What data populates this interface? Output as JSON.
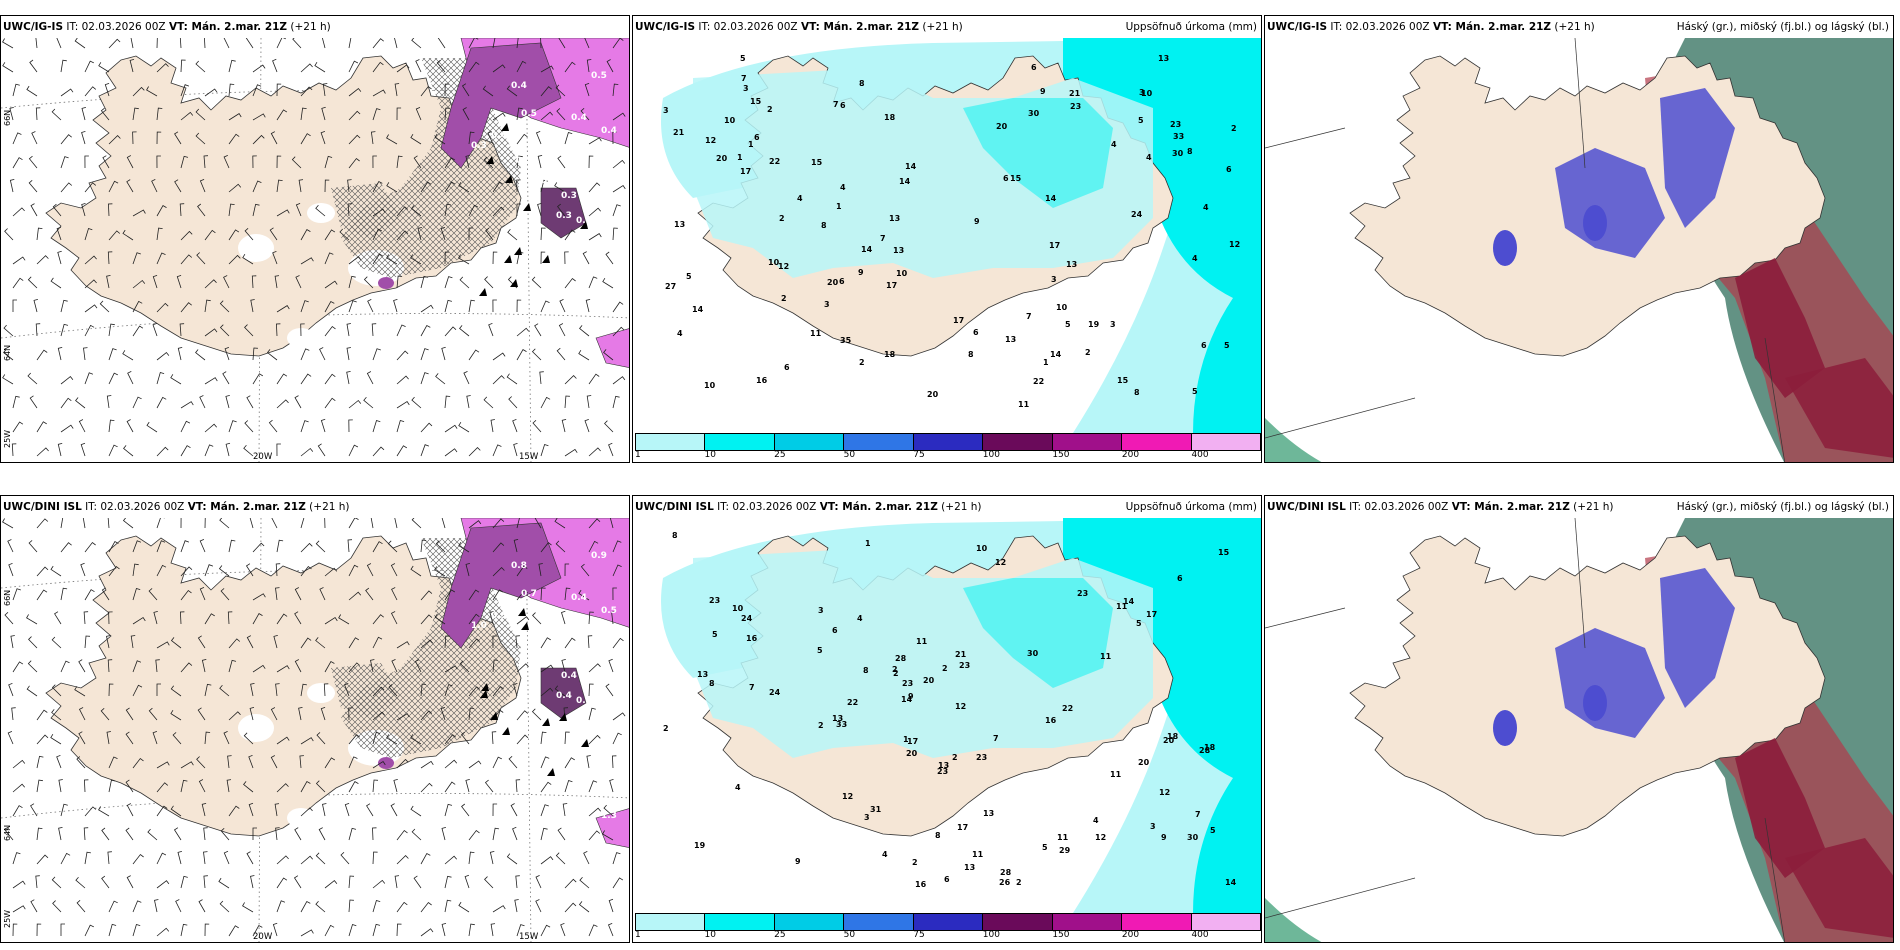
{
  "colors": {
    "land": "#f5e6d6",
    "precip_light": "#b7f6f8",
    "precip_cyan": "#00f2f2",
    "purple_dark": "#6e3b73",
    "purple_mid": "#a14ea9",
    "magenta": "#e57ae6",
    "cloud_blue": "#4d4dd0",
    "cloud_red": "#8c1d3b",
    "cloud_green": "#2f6e5b"
  },
  "panels": [
    {
      "model": "UWC/IG-IS",
      "it": "IT: 02.03.2026 00Z",
      "vt": "VT: Mán. 2.mar. 21Z",
      "lead": "(+21 h)",
      "right_title": "",
      "lat_labels": [
        "66N",
        "64N",
        "25W"
      ],
      "lon_labels": [
        "20W",
        "15W"
      ],
      "white_values": [
        "0.5",
        "0.4",
        "0.4",
        "0.5",
        "0.4",
        "0.3",
        "0.4",
        "0.5",
        "0.4",
        "0.3",
        "0.3",
        "0.3"
      ]
    },
    {
      "model": "UWC/IG-IS",
      "it": "IT: 02.03.2026 00Z",
      "vt": "VT: Mán. 2.mar. 21Z",
      "lead": "(+21 h)",
      "right_title": "Uppsöfnuð úrkoma (mm)",
      "values": [
        "3",
        "5",
        "4",
        "1",
        "1",
        "2",
        "6",
        "3",
        "10",
        "12",
        "13",
        "17",
        "6",
        "2",
        "5",
        "4",
        "7",
        "1",
        "2",
        "3",
        "4",
        "8",
        "7",
        "6",
        "9",
        "13",
        "13",
        "11",
        "17",
        "24",
        "21",
        "17",
        "14",
        "18",
        "19",
        "21",
        "22",
        "23",
        "20",
        "8",
        "13",
        "7",
        "10",
        "14",
        "6",
        "6",
        "14",
        "22",
        "23",
        "20",
        "33",
        "30",
        "10",
        "11",
        "8",
        "5",
        "4",
        "2",
        "3",
        "15",
        "10",
        "10",
        "6",
        "17",
        "9",
        "20",
        "15",
        "15",
        "12",
        "20",
        "16",
        "14",
        "13",
        "13",
        "14",
        "7",
        "4",
        "9",
        "5",
        "8",
        "4",
        "2",
        "3",
        "4",
        "2",
        "1",
        "6",
        "5",
        "12",
        "15",
        "18",
        "14",
        "30",
        "35",
        "27",
        "6",
        "10",
        "3",
        "5",
        "6",
        "8"
      ]
    },
    {
      "model": "UWC/IG-IS",
      "it": "IT: 02.03.2026 00Z",
      "vt": "VT: Mán. 2.mar. 21Z",
      "lead": "(+21 h)",
      "right_title": "Háský (gr.), miðský (fj.bl.) og lágský (bl.)"
    },
    {
      "model": "UWC/DINI ISL",
      "it": "IT: 02.03.2026 00Z",
      "vt": "VT: Mán. 2.mar. 21Z",
      "lead": "(+21 h)",
      "right_title": "",
      "lat_labels": [
        "66N",
        "64N",
        "25W"
      ],
      "lon_labels": [
        "20W",
        "15W"
      ],
      "white_values": [
        "0.7",
        "0.4",
        "0.8",
        "0.9",
        "0.5",
        "1.0",
        "0.5",
        "1.1",
        "0.8",
        "0.4",
        "0.5",
        "0.4",
        "1.3"
      ]
    },
    {
      "model": "UWC/DINI ISL",
      "it": "IT: 02.03.2026 00Z",
      "vt": "VT: Mán. 2.mar. 21Z",
      "lead": "(+21 h)",
      "right_title": "Uppsöfnuð úrkoma (mm)",
      "values": [
        "2",
        "2",
        "4",
        "5",
        "4",
        "1",
        "2",
        "11",
        "10",
        "3",
        "2",
        "6",
        "17",
        "13",
        "9",
        "7",
        "5",
        "9",
        "8",
        "12",
        "16",
        "21",
        "28",
        "19",
        "31",
        "29",
        "23",
        "22",
        "24",
        "23",
        "20",
        "28",
        "30",
        "24",
        "26",
        "23",
        "23",
        "33",
        "28",
        "13",
        "8",
        "17",
        "16",
        "20",
        "14",
        "6",
        "8",
        "5",
        "4",
        "3",
        "2",
        "4",
        "7",
        "5",
        "9",
        "11",
        "15",
        "12",
        "12",
        "13",
        "20",
        "23",
        "23",
        "22",
        "18",
        "18",
        "13",
        "14",
        "6",
        "3",
        "7",
        "8",
        "10",
        "5",
        "14",
        "13",
        "2",
        "2",
        "1",
        "11",
        "11",
        "12",
        "11",
        "17",
        "12",
        "11",
        "2",
        "30",
        "20",
        "16"
      ]
    },
    {
      "model": "UWC/DINI ISL",
      "it": "IT: 02.03.2026 00Z",
      "vt": "VT: Mán. 2.mar. 21Z",
      "lead": "(+21 h)",
      "right_title": "Háský (gr.), miðský (fj.bl.) og lágský (bl.)"
    }
  ],
  "colorbar": {
    "ticks": [
      "1",
      "10",
      "25",
      "50",
      "75",
      "100",
      "150",
      "200",
      "400"
    ],
    "colors": [
      "#b7f6f8",
      "#00f2f2",
      "#00cce6",
      "#2f76e6",
      "#2b2bc0",
      "#6a0a5a",
      "#a0108a",
      "#f01ab4",
      "#f2b0f2"
    ]
  }
}
